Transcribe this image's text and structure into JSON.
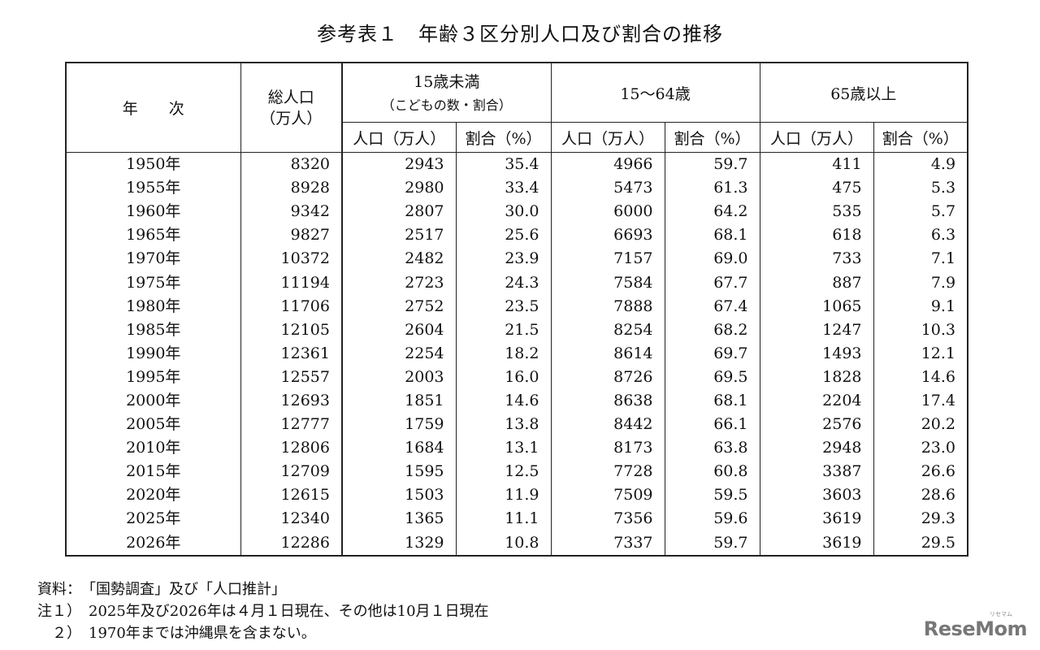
{
  "title": "参考表１　年齢３区分別人口及び割合の推移",
  "header": {
    "year": "年　　次",
    "total": "総人口",
    "total_unit": "（万人）",
    "group_under15": "15歳未満",
    "group_under15_sub": "（こどもの数・割合）",
    "group_15_64": "15～64歳",
    "group_65plus": "65歳以上",
    "pop": "人口（万人）",
    "ratio": "割合（%）"
  },
  "rows": [
    [
      "1950年",
      "8320",
      "2943",
      "35.4",
      "4966",
      "59.7",
      "411",
      "4.9"
    ],
    [
      "1955年",
      "8928",
      "2980",
      "33.4",
      "5473",
      "61.3",
      "475",
      "5.3"
    ],
    [
      "1960年",
      "9342",
      "2807",
      "30.0",
      "6000",
      "64.2",
      "535",
      "5.7"
    ],
    [
      "1965年",
      "9827",
      "2517",
      "25.6",
      "6693",
      "68.1",
      "618",
      "6.3"
    ],
    [
      "1970年",
      "10372",
      "2482",
      "23.9",
      "7157",
      "69.0",
      "733",
      "7.1"
    ],
    [
      "1975年",
      "11194",
      "2723",
      "24.3",
      "7584",
      "67.7",
      "887",
      "7.9"
    ],
    [
      "1980年",
      "11706",
      "2752",
      "23.5",
      "7888",
      "67.4",
      "1065",
      "9.1"
    ],
    [
      "1985年",
      "12105",
      "2604",
      "21.5",
      "8254",
      "68.2",
      "1247",
      "10.3"
    ],
    [
      "1990年",
      "12361",
      "2254",
      "18.2",
      "8614",
      "69.7",
      "1493",
      "12.1"
    ],
    [
      "1995年",
      "12557",
      "2003",
      "16.0",
      "8726",
      "69.5",
      "1828",
      "14.6"
    ],
    [
      "2000年",
      "12693",
      "1851",
      "14.6",
      "8638",
      "68.1",
      "2204",
      "17.4"
    ],
    [
      "2005年",
      "12777",
      "1759",
      "13.8",
      "8442",
      "66.1",
      "2576",
      "20.2"
    ],
    [
      "2010年",
      "12806",
      "1684",
      "13.1",
      "8173",
      "63.8",
      "2948",
      "23.0"
    ],
    [
      "2015年",
      "12709",
      "1595",
      "12.5",
      "7728",
      "60.8",
      "3387",
      "26.6"
    ],
    [
      "2020年",
      "12615",
      "1503",
      "11.9",
      "7509",
      "59.5",
      "3603",
      "28.6"
    ],
    [
      "2025年",
      "12340",
      "1365",
      "11.1",
      "7356",
      "59.6",
      "3619",
      "29.3"
    ],
    [
      "2026年",
      "12286",
      "1329",
      "10.8",
      "7337",
      "59.7",
      "3619",
      "29.5"
    ]
  ],
  "notes": [
    "資料：　「国勢調査」及び「人口推計」",
    "注１）　2025年及び2026年は４月１日現在、その他は10月１日現在",
    "　２）　1970年までは沖縄県を含まない。"
  ],
  "logo": {
    "text": "ReseMom",
    "small": "リセマム"
  }
}
